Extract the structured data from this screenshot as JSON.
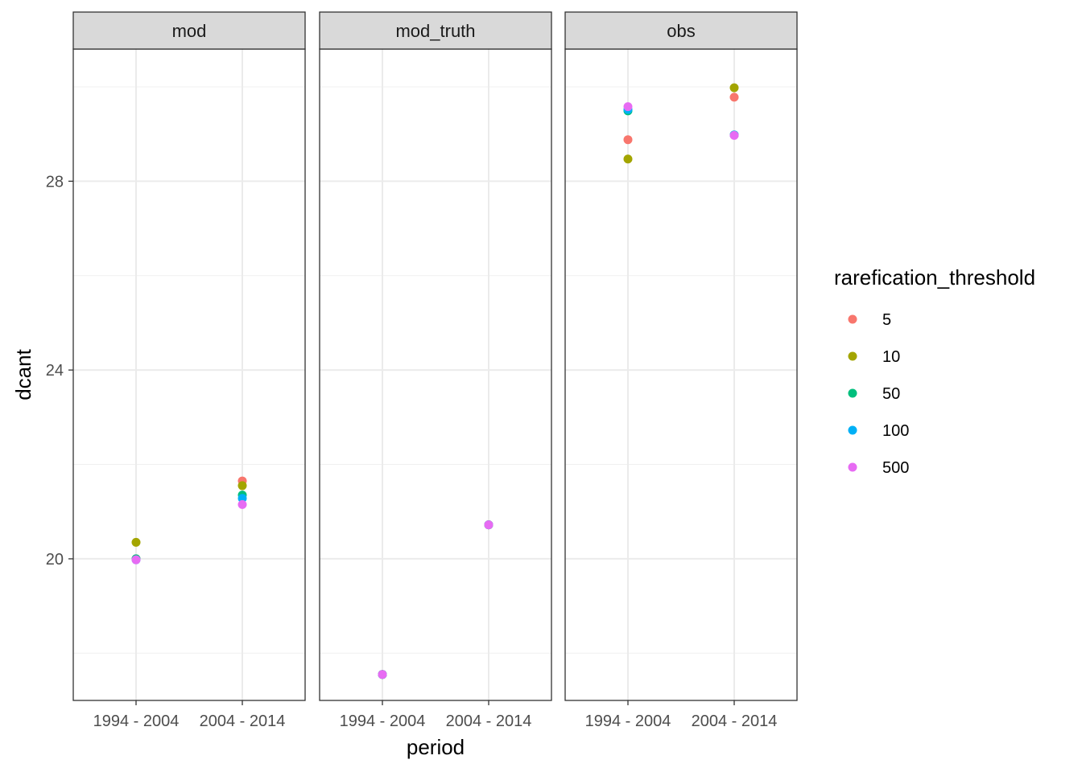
{
  "chart_data": {
    "type": "scatter",
    "facet_variable": "type",
    "panels": [
      "mod",
      "mod_truth",
      "obs"
    ],
    "categories": [
      "1994 - 2004",
      "2004 - 2014"
    ],
    "xlabel": "period",
    "ylabel": "dcant",
    "ylim": [
      17.0,
      30.8
    ],
    "y_ticks": [
      20,
      24,
      28
    ],
    "y_tick_labels": [
      "20",
      "24",
      "28"
    ],
    "grid": true,
    "legend": {
      "title": "rarefication_threshold",
      "placement": "right",
      "entries": [
        "5",
        "10",
        "50",
        "100",
        "500"
      ],
      "colors": [
        "#F8766D",
        "#A3A500",
        "#00BF7D",
        "#00B0F6",
        "#E76BF3"
      ]
    },
    "series": [
      {
        "name": "5",
        "values": {
          "mod": [
            20.0,
            21.65
          ],
          "mod_truth": [
            17.55,
            20.72
          ],
          "obs": [
            28.88,
            29.78
          ]
        }
      },
      {
        "name": "10",
        "values": {
          "mod": [
            20.35,
            21.55
          ],
          "mod_truth": [
            17.55,
            20.72
          ],
          "obs": [
            28.47,
            29.98
          ]
        }
      },
      {
        "name": "50",
        "values": {
          "mod": [
            20.0,
            21.35
          ],
          "mod_truth": [
            17.55,
            20.72
          ],
          "obs": [
            29.49,
            28.98
          ]
        }
      },
      {
        "name": "100",
        "values": {
          "mod": [
            19.98,
            21.28
          ],
          "mod_truth": [
            17.55,
            20.72
          ],
          "obs": [
            29.52,
            28.98
          ]
        }
      },
      {
        "name": "500",
        "values": {
          "mod": [
            19.98,
            21.15
          ],
          "mod_truth": [
            17.55,
            20.72
          ],
          "obs": [
            29.58,
            28.97
          ]
        }
      }
    ]
  }
}
